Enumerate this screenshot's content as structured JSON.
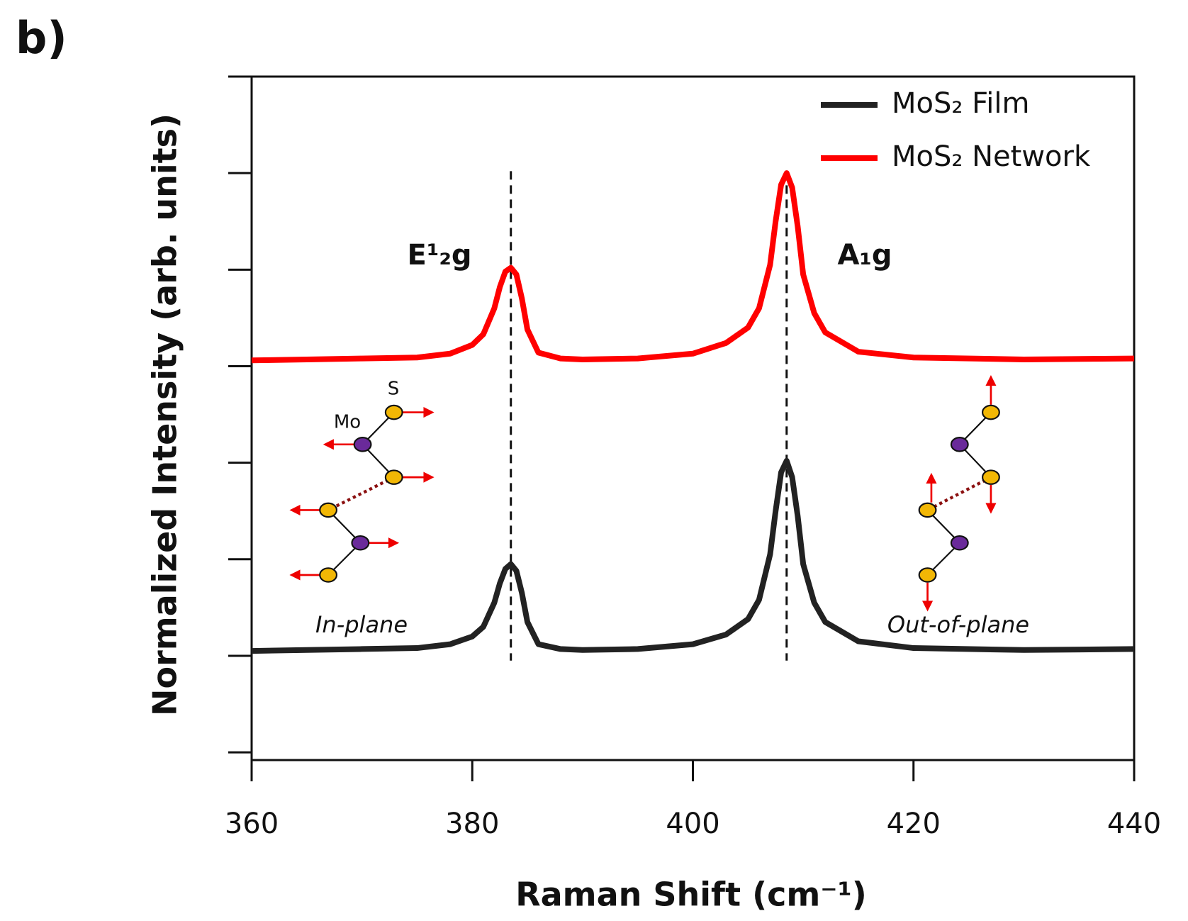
{
  "chart_data": {
    "type": "line",
    "panel_label": "b)",
    "xlabel": "Raman Shift (cm⁻¹)",
    "ylabel": "Normalized Intensity (arb. units)",
    "xlim": [
      360,
      440
    ],
    "xticks": [
      360,
      380,
      400,
      420,
      440
    ],
    "ylim": [
      -0.08,
      7
    ],
    "yticks": [
      0,
      1,
      2,
      3,
      4,
      5,
      6,
      7
    ],
    "x": [
      360,
      365,
      370,
      375,
      378,
      380,
      381,
      382,
      382.5,
      383,
      383.5,
      384,
      384.5,
      385,
      386,
      388,
      390,
      395,
      400,
      403,
      405,
      406,
      407,
      407.5,
      408,
      408.5,
      409,
      409.5,
      410,
      411,
      412,
      415,
      420,
      430,
      440
    ],
    "series": [
      {
        "name": "MoS₂ Film",
        "color": "#222222",
        "values": [
          1.05,
          1.06,
          1.07,
          1.08,
          1.12,
          1.2,
          1.3,
          1.55,
          1.75,
          1.9,
          1.95,
          1.88,
          1.65,
          1.35,
          1.12,
          1.07,
          1.06,
          1.07,
          1.12,
          1.22,
          1.38,
          1.58,
          2.05,
          2.5,
          2.9,
          3.02,
          2.85,
          2.45,
          1.95,
          1.55,
          1.35,
          1.15,
          1.08,
          1.06,
          1.07
        ]
      },
      {
        "name": "MoS₂ Network",
        "color": "#ff0000",
        "values": [
          4.06,
          4.07,
          4.08,
          4.09,
          4.13,
          4.22,
          4.33,
          4.6,
          4.82,
          4.98,
          5.02,
          4.95,
          4.7,
          4.38,
          4.14,
          4.08,
          4.07,
          4.08,
          4.13,
          4.24,
          4.4,
          4.6,
          5.05,
          5.5,
          5.88,
          6.0,
          5.85,
          5.45,
          4.95,
          4.55,
          4.35,
          4.15,
          4.09,
          4.07,
          4.08
        ]
      }
    ],
    "peaks": [
      {
        "label": "E¹₂g",
        "position": 383.5,
        "mode": "In-plane"
      },
      {
        "label": "A₁g",
        "position": 408.5,
        "mode": "Out-of-plane"
      }
    ],
    "atom_labels": [
      "Mo",
      "S"
    ]
  }
}
